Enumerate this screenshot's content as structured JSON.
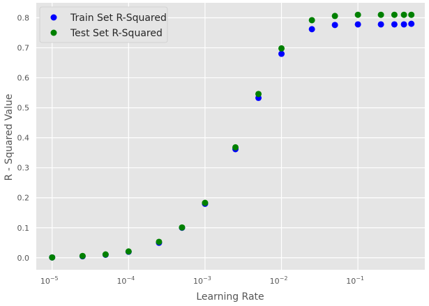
{
  "chart_data": {
    "type": "scatter",
    "title": "",
    "xlabel": "Learning Rate",
    "ylabel": "R - Squared Value",
    "xscale": "log",
    "xlim": [
      6.2e-06,
      0.75
    ],
    "ylim": [
      -0.04,
      0.85
    ],
    "xticks": [
      {
        "value": 1e-05,
        "base": "10",
        "exp": "−5"
      },
      {
        "value": 0.0001,
        "base": "10",
        "exp": "−4"
      },
      {
        "value": 0.001,
        "base": "10",
        "exp": "−3"
      },
      {
        "value": 0.01,
        "base": "10",
        "exp": "−2"
      },
      {
        "value": 0.1,
        "base": "10",
        "exp": "−1"
      }
    ],
    "yticks": [
      "0.0",
      "0.1",
      "0.2",
      "0.3",
      "0.4",
      "0.5",
      "0.6",
      "0.7",
      "0.8"
    ],
    "grid": true,
    "legend_position": "top-left",
    "x": [
      1e-05,
      2.5e-05,
      5e-05,
      0.0001,
      0.00025,
      0.0005,
      0.001,
      0.0025,
      0.005,
      0.01,
      0.025,
      0.05,
      0.1,
      0.2,
      0.3,
      0.4,
      0.5
    ],
    "series": [
      {
        "name": "Train Set R-Squared",
        "color": "#0000ff",
        "values": [
          0.001,
          0.005,
          0.01,
          0.02,
          0.05,
          0.1,
          0.18,
          0.362,
          0.533,
          0.68,
          0.762,
          0.776,
          0.778,
          0.778,
          0.778,
          0.778,
          0.78
        ]
      },
      {
        "name": "Test Set R-Squared",
        "color": "#008000",
        "values": [
          0.001,
          0.006,
          0.011,
          0.021,
          0.053,
          0.101,
          0.183,
          0.368,
          0.546,
          0.698,
          0.792,
          0.806,
          0.81,
          0.81,
          0.81,
          0.81,
          0.81
        ]
      }
    ]
  },
  "colors": {
    "plot_background": "#e5e5e5",
    "grid": "#ffffff"
  }
}
